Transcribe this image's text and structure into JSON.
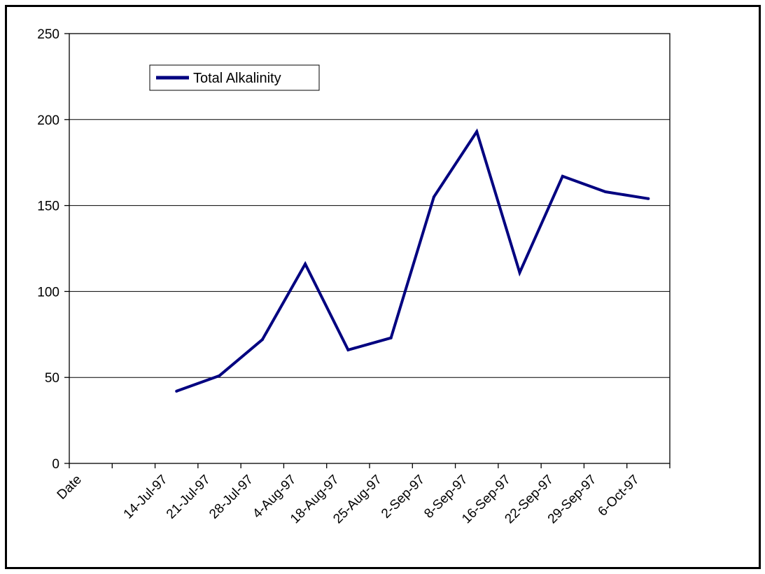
{
  "chart_data": {
    "type": "line",
    "categories": [
      "Date",
      "",
      "14-Jul-97",
      "21-Jul-97",
      "28-Jul-97",
      "4-Aug-97",
      "18-Aug-97",
      "25-Aug-97",
      "2-Sep-97",
      "8-Sep-97",
      "16-Sep-97",
      "22-Sep-97",
      "29-Sep-97",
      "6-Oct-97"
    ],
    "series": [
      {
        "name": "Total Alkalinity",
        "values": [
          null,
          null,
          42,
          51,
          72,
          116,
          66,
          73,
          155,
          193,
          111,
          167,
          158,
          154
        ],
        "color": "#000080"
      }
    ],
    "ylim": [
      0,
      250
    ],
    "yticks": [
      0,
      50,
      100,
      150,
      200,
      250
    ],
    "grid": true,
    "legend_position": "top-left"
  }
}
